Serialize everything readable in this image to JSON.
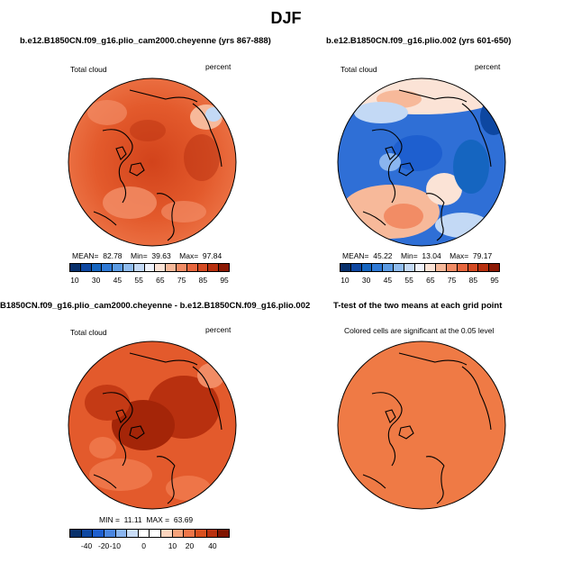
{
  "figure_title": "DJF",
  "panels": {
    "top_left": {
      "title": "b.e12.B1850CN.f09_g16.plio_cam2000.cheyenne (yrs 867-888)",
      "variable": "Total cloud",
      "units": "percent",
      "stats": {
        "mean_label": "MEAN=",
        "mean": "82.78",
        "min_label": "Min=",
        "min": "39.63",
        "max_label": "Max=",
        "max": "97.84"
      },
      "colorbar": {
        "ticks": [
          "10",
          "30",
          "45",
          "55",
          "65",
          "75",
          "85",
          "95"
        ]
      }
    },
    "top_right": {
      "title": "b.e12.B1850CN.f09_g16.plio.002 (yrs 601-650)",
      "variable": "Total cloud",
      "units": "percent",
      "stats": {
        "mean_label": "MEAN=",
        "mean": "45.22",
        "min_label": "Min=",
        "min": "13.04",
        "max_label": "Max=",
        "max": "79.17"
      },
      "colorbar": {
        "ticks": [
          "10",
          "30",
          "45",
          "55",
          "65",
          "75",
          "85",
          "95"
        ]
      }
    },
    "bottom_left": {
      "title": "B1850CN.f09_g16.plio_cam2000.cheyenne - b.e12.B1850CN.f09_g16.plio.002",
      "variable": "Total cloud",
      "units": "percent",
      "stats": {
        "min_label": "MIN =",
        "min": "11.11",
        "max_label": "MAX =",
        "max": "63.69"
      },
      "colorbar": {
        "ticks": [
          "-40",
          "-20",
          "-10",
          "0",
          "10",
          "20",
          "40"
        ]
      }
    },
    "bottom_right": {
      "title": "T-test of the two means at each grid point",
      "note": "Colored cells are significant at the 0.05 level"
    }
  },
  "colors": {
    "abs_scale": [
      "#08306b",
      "#0d47a1",
      "#1565c0",
      "#2f7ad6",
      "#5b9be3",
      "#8fbcef",
      "#c3d9f5",
      "#eef2fb",
      "#fbe3d6",
      "#f7b99a",
      "#f28c65",
      "#e8673e",
      "#d44a22",
      "#b8300f",
      "#8c1a05"
    ],
    "diff_scale": [
      "#08306b",
      "#0d47a1",
      "#1e5fcf",
      "#4a86e0",
      "#8ab5ef",
      "#c9dcf6",
      "#ffffff",
      "#ffffff",
      "#fbd4bd",
      "#f5a27a",
      "#ee7548",
      "#d9501f",
      "#b8300f",
      "#7f1400"
    ]
  }
}
